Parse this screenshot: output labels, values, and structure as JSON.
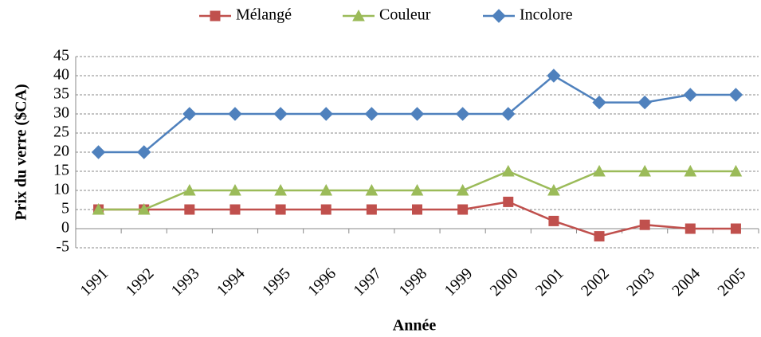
{
  "chart_data": {
    "type": "line",
    "x_label": "Année",
    "y_label": "Prix du verre ($CA)",
    "categories": [
      "1991",
      "1992",
      "1993",
      "1994",
      "1995",
      "1996",
      "1997",
      "1998",
      "1999",
      "2000",
      "2001",
      "2002",
      "2003",
      "2004",
      "2005"
    ],
    "series": [
      {
        "name": "Mélangé",
        "color": "#c0504d",
        "marker": "square",
        "values": [
          5,
          5,
          5,
          5,
          5,
          5,
          5,
          5,
          5,
          7,
          2,
          -2,
          1,
          0,
          0
        ]
      },
      {
        "name": "Couleur",
        "color": "#9bbb59",
        "marker": "triangle",
        "values": [
          5,
          5,
          10,
          10,
          10,
          10,
          10,
          10,
          10,
          15,
          10,
          15,
          15,
          15,
          15
        ]
      },
      {
        "name": "Incolore",
        "color": "#4f81bd",
        "marker": "diamond",
        "values": [
          20,
          20,
          30,
          30,
          30,
          30,
          30,
          30,
          30,
          30,
          40,
          33,
          33,
          35,
          35
        ]
      }
    ],
    "ylim": [
      -5,
      45
    ],
    "yticks": [
      -5,
      0,
      5,
      10,
      15,
      20,
      25,
      30,
      35,
      40,
      45
    ],
    "grid": true,
    "legend": "top"
  }
}
